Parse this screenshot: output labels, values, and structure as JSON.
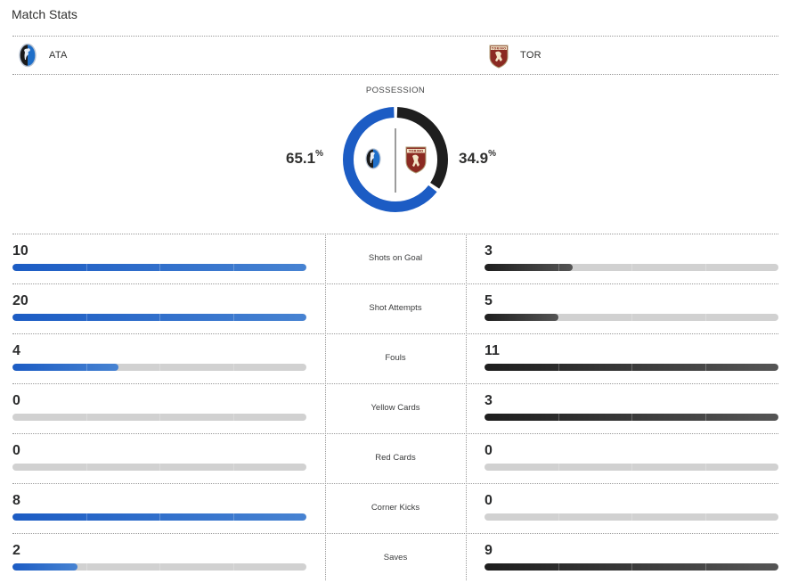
{
  "header": {
    "title": "Match Stats"
  },
  "teams": {
    "home": {
      "abbr": "ATA",
      "logo_icon": "atalanta-crest-icon",
      "color": "#1c5cc4"
    },
    "away": {
      "abbr": "TOR",
      "logo_icon": "torino-crest-icon",
      "color": "#1e1e1e",
      "logo_text": "TORINO"
    }
  },
  "possession": {
    "label": "POSSESSION",
    "home_value": "65.1",
    "away_value": "34.9",
    "unit": "%",
    "home_fraction": 0.651,
    "away_fraction": 0.349
  },
  "stats": [
    {
      "label": "Shots on Goal",
      "home": "10",
      "away": "3",
      "home_fraction": 1.0,
      "away_fraction": 0.3
    },
    {
      "label": "Shot Attempts",
      "home": "20",
      "away": "5",
      "home_fraction": 1.0,
      "away_fraction": 0.25
    },
    {
      "label": "Fouls",
      "home": "4",
      "away": "11",
      "home_fraction": 0.36,
      "away_fraction": 1.0
    },
    {
      "label": "Yellow Cards",
      "home": "0",
      "away": "3",
      "home_fraction": 0.0,
      "away_fraction": 1.0
    },
    {
      "label": "Red Cards",
      "home": "0",
      "away": "0",
      "home_fraction": 0.0,
      "away_fraction": 0.0
    },
    {
      "label": "Corner Kicks",
      "home": "8",
      "away": "0",
      "home_fraction": 1.0,
      "away_fraction": 0.0
    },
    {
      "label": "Saves",
      "home": "2",
      "away": "9",
      "home_fraction": 0.22,
      "away_fraction": 1.0
    }
  ]
}
